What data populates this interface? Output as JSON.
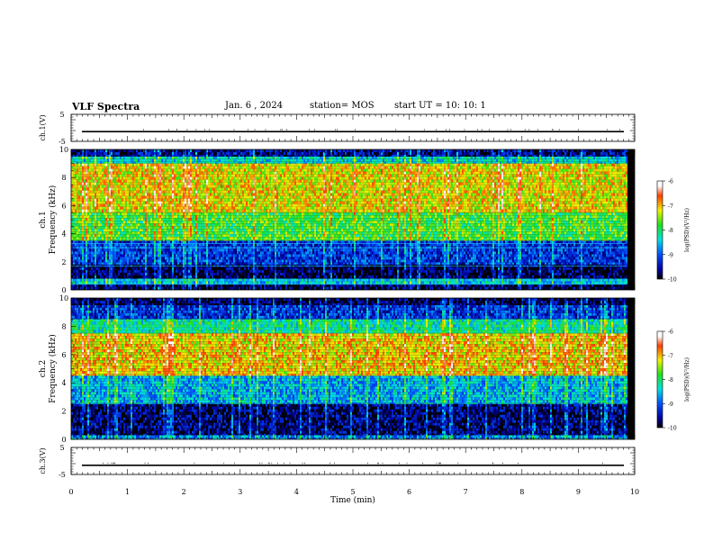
{
  "header": {
    "title": "VLF Spectra",
    "date": "Jan. 6 , 2024",
    "station": "station= MOS",
    "start_ut": "start  UT  =   10: 10: 1"
  },
  "chart_data": [
    {
      "type": "line",
      "panel": "ch1-waveform",
      "ylabel": "ch.1(V)",
      "ylim": [
        -5,
        5
      ],
      "yticks": [
        "5",
        "-5"
      ],
      "x": [
        0,
        10
      ],
      "values": [
        -1.4,
        -1.4
      ]
    },
    {
      "type": "heatmap",
      "panel": "ch1-spectrogram",
      "ylabel": "ch.1\nFrequency (kHz)",
      "ylim": [
        0,
        10
      ],
      "yticks": [
        "0",
        "2",
        "4",
        "6",
        "8",
        "10"
      ],
      "xlim": [
        0,
        9.85
      ],
      "bands": [
        {
          "f": [
            0.0,
            0.4
          ],
          "level": 0.05
        },
        {
          "f": [
            0.4,
            0.8
          ],
          "level": 0.38
        },
        {
          "f": [
            0.8,
            1.8
          ],
          "level": 0.05
        },
        {
          "f": [
            1.8,
            3.5
          ],
          "level": 0.2
        },
        {
          "f": [
            3.5,
            5.5
          ],
          "level": 0.55
        },
        {
          "f": [
            5.5,
            9.0
          ],
          "level": 0.7
        },
        {
          "f": [
            9.0,
            9.5
          ],
          "level": 0.4
        },
        {
          "f": [
            9.5,
            10.0
          ],
          "level": 0.1
        }
      ],
      "lines_khz": [
        0.4,
        0.7,
        1.7,
        3.0,
        3.3
      ],
      "colorbar": {
        "label": "log(PSD)(V²/Hz)",
        "ticks": [
          "-6",
          "-7",
          "-8",
          "-9",
          "-10"
        ],
        "range": [
          -10,
          -6
        ]
      }
    },
    {
      "type": "heatmap",
      "panel": "ch2-spectrogram",
      "ylabel": "ch.2\nFrequency (kHz)",
      "ylim": [
        0,
        10
      ],
      "yticks": [
        "0",
        "2",
        "4",
        "6",
        "8",
        "10"
      ],
      "xlim": [
        0,
        9.85
      ],
      "bands": [
        {
          "f": [
            0.0,
            0.3
          ],
          "level": 0.3
        },
        {
          "f": [
            0.3,
            2.5
          ],
          "level": 0.08
        },
        {
          "f": [
            2.5,
            4.5
          ],
          "level": 0.35
        },
        {
          "f": [
            4.5,
            7.5
          ],
          "level": 0.72
        },
        {
          "f": [
            7.5,
            8.5
          ],
          "level": 0.45
        },
        {
          "f": [
            8.5,
            9.5
          ],
          "level": 0.2
        },
        {
          "f": [
            9.5,
            10.0
          ],
          "level": 0.05
        }
      ],
      "colorbar": {
        "label": "log(PSD)(V²/Hz)",
        "ticks": [
          "-6",
          "-7",
          "-8",
          "-9",
          "-10"
        ],
        "range": [
          -10,
          -6
        ]
      }
    },
    {
      "type": "line",
      "panel": "ch3-waveform",
      "ylabel": "ch.3(V)",
      "ylim": [
        -5,
        5
      ],
      "yticks": [
        "5",
        "-5"
      ],
      "x": [
        0,
        10
      ],
      "values": [
        -1.6,
        -1.6
      ]
    }
  ],
  "xaxis": {
    "label": "Time  (min)",
    "ticks": [
      "0",
      "1",
      "2",
      "3",
      "4",
      "5",
      "6",
      "7",
      "8",
      "9",
      "10"
    ],
    "range": [
      0,
      10
    ]
  }
}
